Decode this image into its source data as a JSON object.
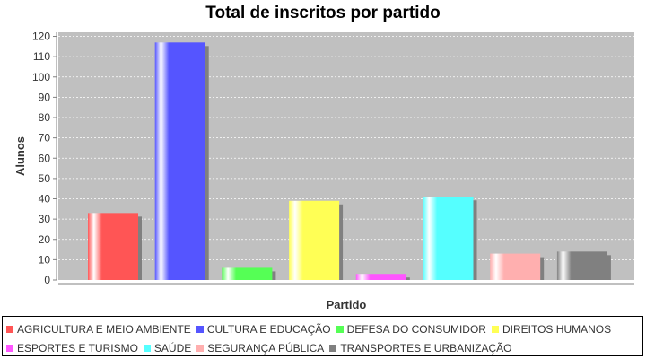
{
  "chart_data": {
    "type": "bar",
    "title": "Total de inscritos por partido",
    "xlabel": "Partido",
    "ylabel": "Alunos",
    "ylim": [
      0,
      122
    ],
    "yticks": [
      0,
      10,
      20,
      30,
      40,
      50,
      60,
      70,
      80,
      90,
      100,
      110,
      120
    ],
    "grid": true,
    "legend_position": "bottom",
    "categories": [
      "AGRICULTURA E MEIO AMBIENTE",
      "CULTURA E EDUCAÇÃO",
      "DEFESA DO CONSUMIDOR",
      "DIREITOS HUMANOS",
      "ESPORTES E TURISMO",
      "SAÚDE",
      "SEGURANÇA PÚBLICA",
      "TRANSPORTES E URBANIZAÇÃO"
    ],
    "values": [
      33,
      117,
      6,
      39,
      3,
      41,
      13,
      14
    ],
    "colors": [
      "#ff5555",
      "#5555ff",
      "#55ff55",
      "#ffff55",
      "#ff55ff",
      "#55ffff",
      "#ffafaf",
      "#808080"
    ]
  }
}
